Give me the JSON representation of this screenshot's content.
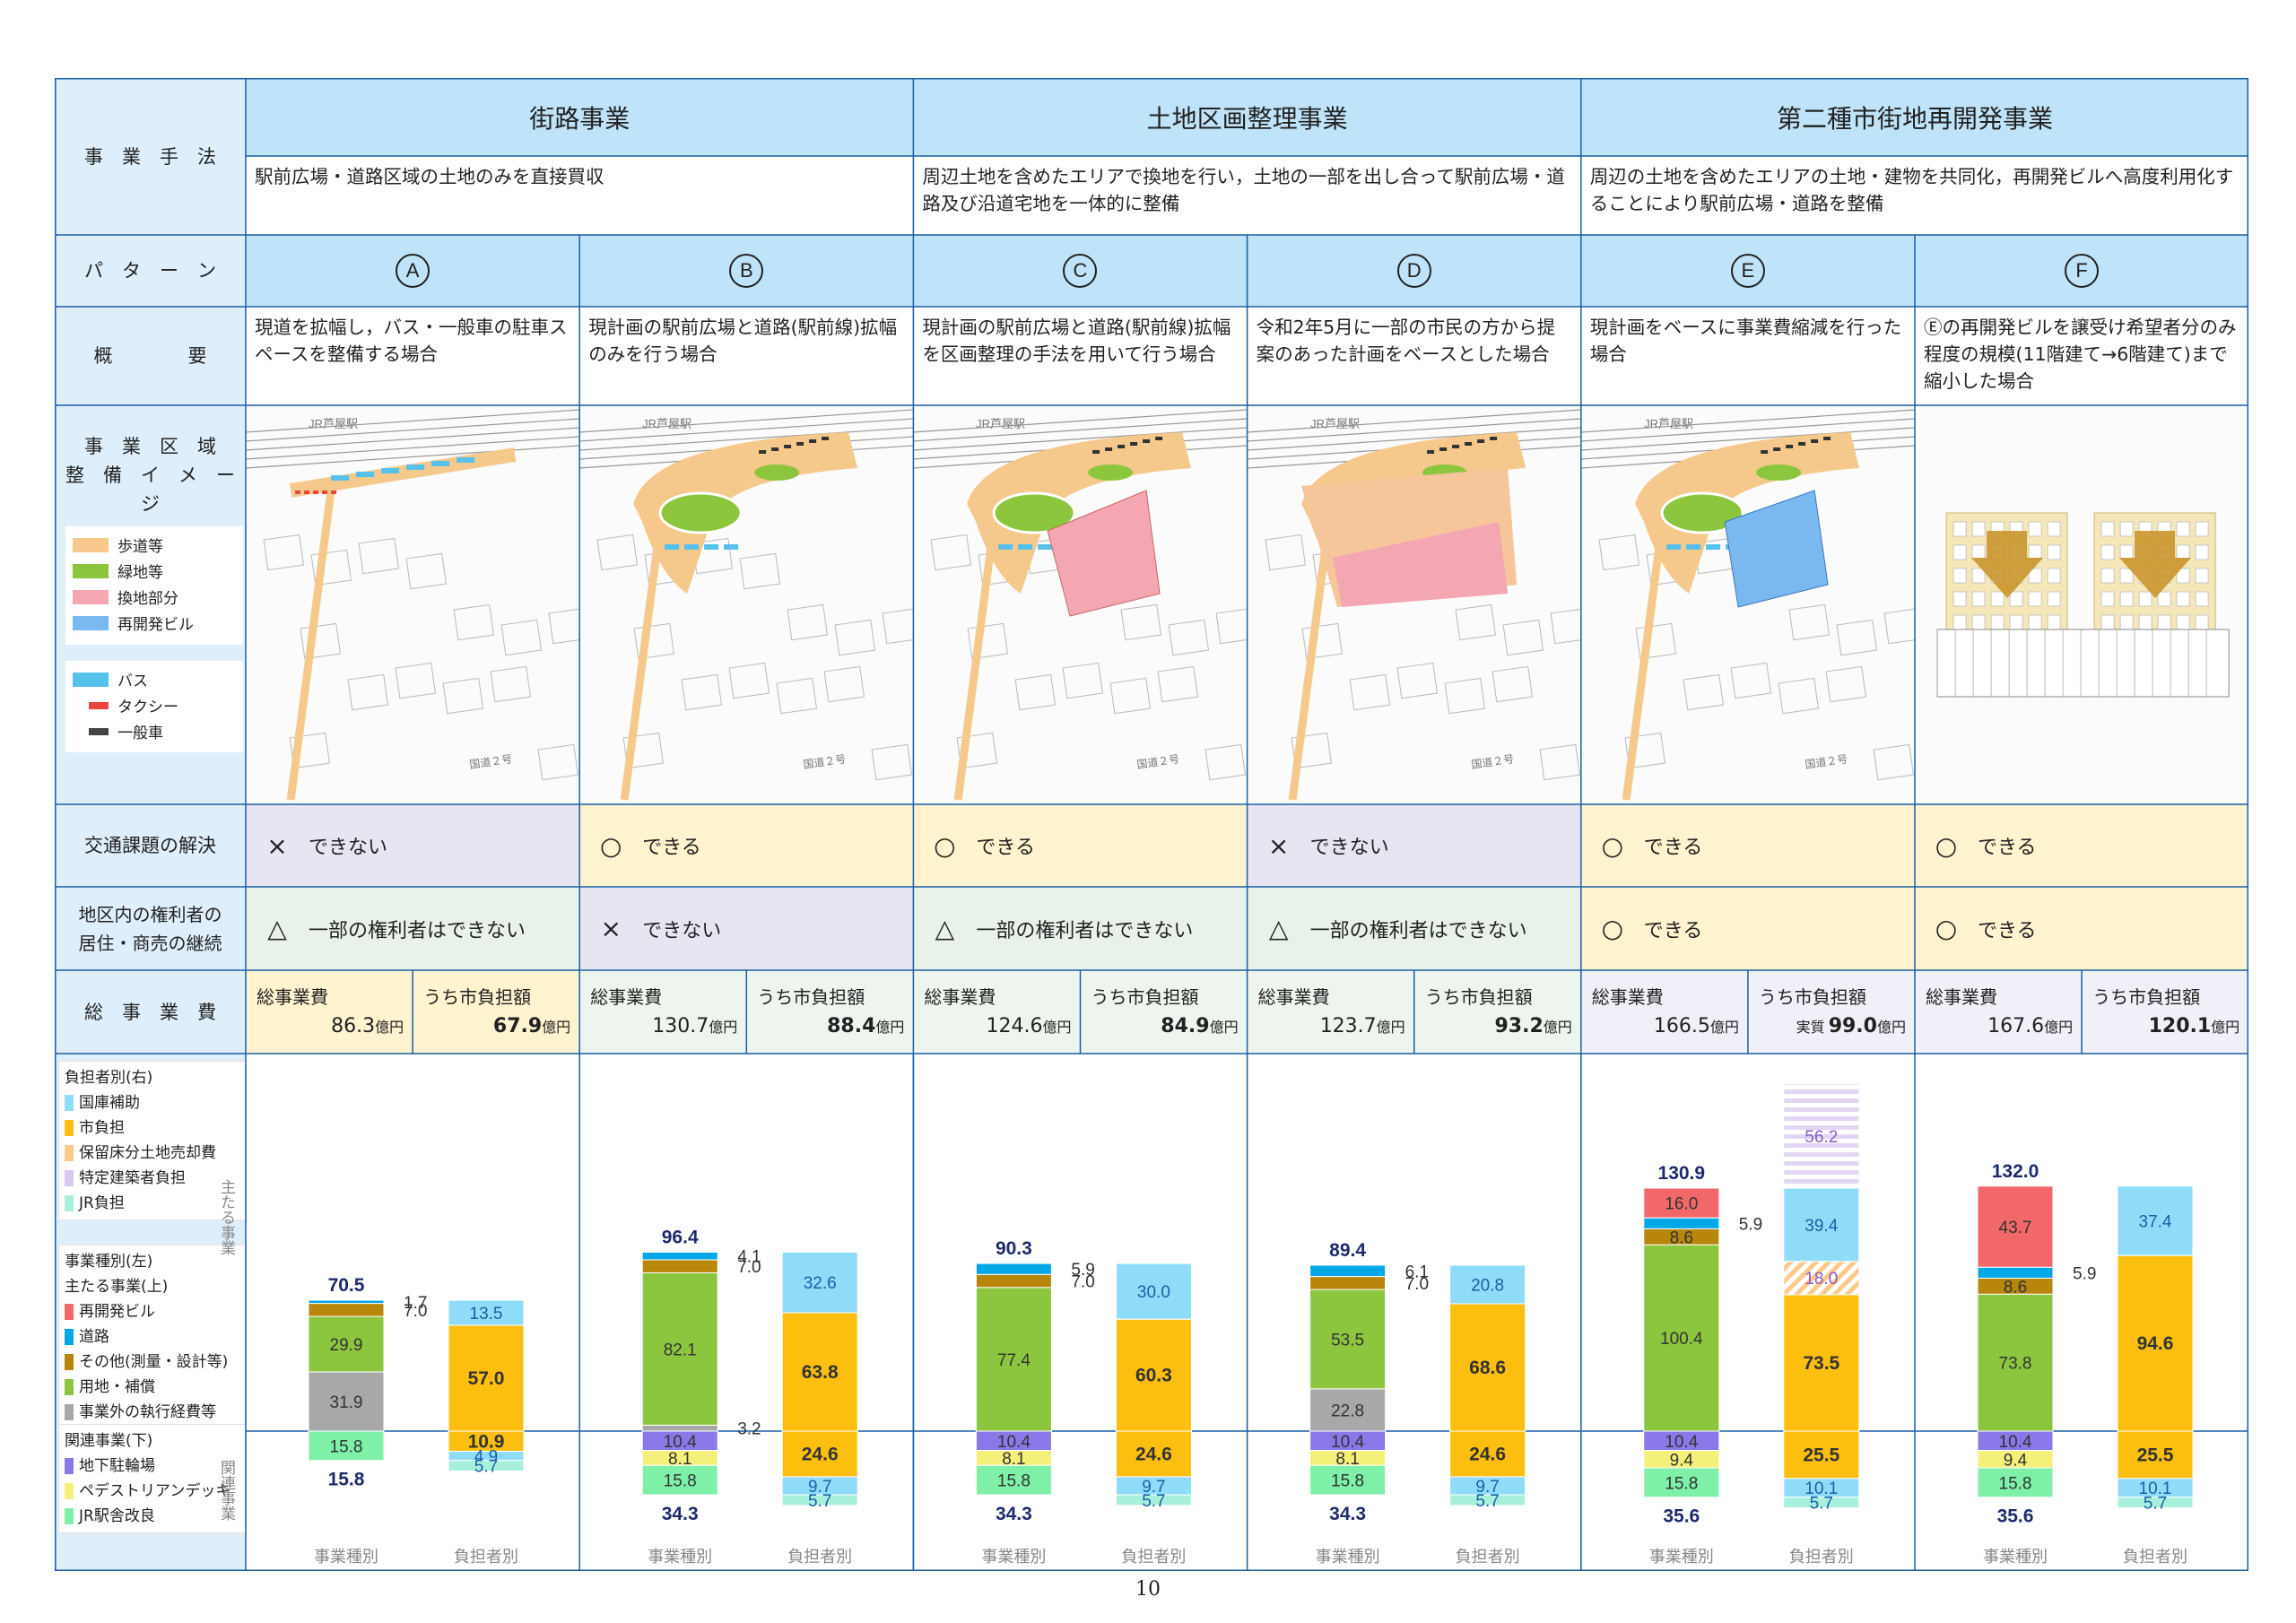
{
  "row_labels": {
    "method": "事　業　手　法",
    "pattern": "パ　タ　ー　ン",
    "overview": "概　　　　要",
    "area": "事　業　区　域\n整　備　イ　メ　ー　ジ",
    "traffic": "交通課題の解決",
    "rights": "地区内の権利者の\n居住・商売の継続",
    "cost": "総　事　業　費"
  },
  "methods": [
    {
      "title": "街路事業",
      "desc": "駅前広場・道路区域の土地のみを直接買収"
    },
    {
      "title": "土地区画整理事業",
      "desc": "周辺土地を含めたエリアで換地を行い，土地の一部を出し合って駅前広場・道路及び沿道宅地を一体的に整備"
    },
    {
      "title": "第二種市街地再開発事業",
      "desc": "周辺の土地を含めたエリアの土地・建物を共同化，再開発ビルへ高度利用化することにより駅前広場・道路を整備"
    }
  ],
  "patterns": [
    {
      "letter": "A",
      "overview": "現道を拡幅し，バス・一般車の駐車スペースを整備する場合",
      "traffic": {
        "mark": "×",
        "text": "できない"
      },
      "rights": {
        "mark": "△",
        "text": "一部の権利者はできない"
      },
      "total_label": "総事業費",
      "total": "86.3",
      "city_label": "うち市負担額",
      "city": "67.9",
      "city_prefix": ""
    },
    {
      "letter": "B",
      "overview": "現計画の駅前広場と道路(駅前線)拡幅のみを行う場合",
      "traffic": {
        "mark": "○",
        "text": "できる"
      },
      "rights": {
        "mark": "×",
        "text": "できない"
      },
      "total_label": "総事業費",
      "total": "130.7",
      "city_label": "うち市負担額",
      "city": "88.4",
      "city_prefix": ""
    },
    {
      "letter": "C",
      "overview": "現計画の駅前広場と道路(駅前線)拡幅を区画整理の手法を用いて行う場合",
      "traffic": {
        "mark": "○",
        "text": "できる"
      },
      "rights": {
        "mark": "△",
        "text": "一部の権利者はできない"
      },
      "total_label": "総事業費",
      "total": "124.6",
      "city_label": "うち市負担額",
      "city": "84.9",
      "city_prefix": ""
    },
    {
      "letter": "D",
      "overview": "令和2年5月に一部の市民の方から提案のあった計画をベースとした場合",
      "traffic": {
        "mark": "×",
        "text": "できない"
      },
      "rights": {
        "mark": "△",
        "text": "一部の権利者はできない"
      },
      "total_label": "総事業費",
      "total": "123.7",
      "city_label": "うち市負担額",
      "city": "93.2",
      "city_prefix": ""
    },
    {
      "letter": "E",
      "overview": "現計画をベースに事業費縮減を行った場合",
      "traffic": {
        "mark": "○",
        "text": "できる"
      },
      "rights": {
        "mark": "○",
        "text": "できる"
      },
      "total_label": "総事業費",
      "total": "166.5",
      "city_label": "うち市負担額",
      "city": "99.0",
      "city_prefix": "実質"
    },
    {
      "letter": "F",
      "overview": "Ⓔの再開発ビルを譲受け希望者分のみ程度の規模(11階建て→6階建て)まで縮小した場合",
      "traffic": {
        "mark": "○",
        "text": "できる"
      },
      "rights": {
        "mark": "○",
        "text": "できる"
      },
      "total_label": "総事業費",
      "total": "167.6",
      "city_label": "うち市負担額",
      "city": "120.1",
      "city_prefix": ""
    }
  ],
  "unit": "億円",
  "map_legend": {
    "area": [
      {
        "label": "歩道等",
        "color": "#f8c78e"
      },
      {
        "label": "緑地等",
        "color": "#8cc63f"
      },
      {
        "label": "換地部分",
        "color": "#f4a7b2"
      },
      {
        "label": "再開発ビル",
        "color": "#7ab8f0"
      }
    ],
    "vehicles": [
      {
        "label": "バス",
        "color": "#56c1ea"
      },
      {
        "label": "タクシー",
        "color": "#e8453c"
      },
      {
        "label": "一般車",
        "color": "#444444"
      }
    ]
  },
  "map_text": {
    "station": "JR芦屋駅",
    "road": "国道２号"
  },
  "chart_legend": {
    "burden_title": "負担者別(右)",
    "burden": [
      {
        "label": "国庫補助",
        "color": "#8fdcf8"
      },
      {
        "label": "市負担",
        "color": "#fdbf0f"
      },
      {
        "label": "保留床分土地売却費",
        "color": "#fbc98a"
      },
      {
        "label": "特定建築者負担",
        "color": "#d9c8f0"
      },
      {
        "label": "JR負担",
        "color": "#a8f0dc"
      }
    ],
    "type_title": "事業種別(左)",
    "main_title": "主たる事業(上)",
    "main": [
      {
        "label": "再開発ビル",
        "color": "#f26868"
      },
      {
        "label": "道路",
        "color": "#00a8e8"
      },
      {
        "label": "その他(測量・設計等)",
        "color": "#b8860b"
      },
      {
        "label": "用地・補償",
        "color": "#8cc63f"
      },
      {
        "label": "事業外の執行経費等",
        "color": "#a8a8a8"
      }
    ],
    "related_title": "関連事業(下)",
    "related": [
      {
        "label": "地下駐輪場",
        "color": "#8878e8"
      },
      {
        "label": "ペデストリアンデッキ",
        "color": "#f5f07a"
      },
      {
        "label": "JR駅舎改良",
        "color": "#7ef0a8"
      }
    ]
  },
  "axis_side_labels": {
    "main": "主たる事業",
    "related": "関連事業"
  },
  "chart_data": {
    "type": "bar",
    "title": "",
    "unit": "億円",
    "colors": {
      "redevelop": "#f26868",
      "road": "#00a8e8",
      "other": "#b8860b",
      "land": "#8cc63f",
      "outside": "#a8a8a8",
      "parking": "#8878e8",
      "deck": "#f5f07a",
      "station": "#7ef0a8",
      "subsidy": "#8fdcf8",
      "city": "#fdbf0f",
      "floor": "#fbc98a",
      "specific": "#d9c8f0",
      "jr": "#a8f0dc"
    },
    "x_labels": [
      "事業種別",
      "負担者別"
    ],
    "patterns": [
      {
        "name": "A",
        "type_main": {
          "total": "70.5",
          "segments": [
            {
              "key": "outside",
              "value": 31.9
            },
            {
              "key": "land",
              "value": 29.9
            },
            {
              "key": "other",
              "value": 7.0
            },
            {
              "key": "road",
              "value": 1.7
            }
          ]
        },
        "type_related": {
          "total": "15.8",
          "segments": [
            {
              "key": "station",
              "value": 15.8
            }
          ]
        },
        "burden_main": {
          "segments": [
            {
              "key": "city",
              "value": 57.0
            },
            {
              "key": "subsidy",
              "value": 13.5
            }
          ]
        },
        "burden_related": {
          "segments": [
            {
              "key": "city",
              "value": 10.9
            },
            {
              "key": "subsidy",
              "value": 4.9
            },
            {
              "key": "jr",
              "value": 5.7
            }
          ]
        }
      },
      {
        "name": "B",
        "type_main": {
          "total": "96.4",
          "segments": [
            {
              "key": "outside",
              "value": 3.2
            },
            {
              "key": "land",
              "value": 82.1
            },
            {
              "key": "other",
              "value": 7.0
            },
            {
              "key": "road",
              "value": 4.1
            }
          ]
        },
        "type_related": {
          "total": "34.3",
          "segments": [
            {
              "key": "parking",
              "value": 10.4
            },
            {
              "key": "deck",
              "value": 8.1
            },
            {
              "key": "station",
              "value": 15.8
            }
          ]
        },
        "burden_main": {
          "segments": [
            {
              "key": "city",
              "value": 63.8
            },
            {
              "key": "subsidy",
              "value": 32.6
            }
          ]
        },
        "burden_related": {
          "segments": [
            {
              "key": "city",
              "value": 24.6
            },
            {
              "key": "subsidy",
              "value": 9.7
            },
            {
              "key": "jr",
              "value": 5.7
            }
          ]
        }
      },
      {
        "name": "C",
        "type_main": {
          "total": "90.3",
          "segments": [
            {
              "key": "land",
              "value": 77.4
            },
            {
              "key": "other",
              "value": 7.0
            },
            {
              "key": "road",
              "value": 5.9
            }
          ]
        },
        "type_related": {
          "total": "34.3",
          "segments": [
            {
              "key": "parking",
              "value": 10.4
            },
            {
              "key": "deck",
              "value": 8.1
            },
            {
              "key": "station",
              "value": 15.8
            }
          ]
        },
        "burden_main": {
          "segments": [
            {
              "key": "city",
              "value": 60.3
            },
            {
              "key": "subsidy",
              "value": 30.0
            }
          ]
        },
        "burden_related": {
          "segments": [
            {
              "key": "city",
              "value": 24.6
            },
            {
              "key": "subsidy",
              "value": 9.7
            },
            {
              "key": "jr",
              "value": 5.7
            }
          ]
        }
      },
      {
        "name": "D",
        "type_main": {
          "total": "89.4",
          "segments": [
            {
              "key": "outside",
              "value": 22.8
            },
            {
              "key": "land",
              "value": 53.5
            },
            {
              "key": "other",
              "value": 7.0
            },
            {
              "key": "road",
              "value": 6.1
            }
          ]
        },
        "type_related": {
          "total": "34.3",
          "segments": [
            {
              "key": "parking",
              "value": 10.4
            },
            {
              "key": "deck",
              "value": 8.1
            },
            {
              "key": "station",
              "value": 15.8
            }
          ]
        },
        "burden_main": {
          "segments": [
            {
              "key": "city",
              "value": 68.6
            },
            {
              "key": "subsidy",
              "value": 20.8
            }
          ]
        },
        "burden_related": {
          "segments": [
            {
              "key": "city",
              "value": 24.6
            },
            {
              "key": "subsidy",
              "value": 9.7
            },
            {
              "key": "jr",
              "value": 5.7
            }
          ]
        }
      },
      {
        "name": "E",
        "type_main": {
          "total": "130.9",
          "segments": [
            {
              "key": "land",
              "value": 100.4
            },
            {
              "key": "other",
              "value": 8.6
            },
            {
              "key": "road",
              "value": 5.9
            },
            {
              "key": "redevelop",
              "value": 16.0
            }
          ]
        },
        "type_related": {
          "total": "35.6",
          "segments": [
            {
              "key": "parking",
              "value": 10.4
            },
            {
              "key": "deck",
              "value": 9.4
            },
            {
              "key": "station",
              "value": 15.8
            }
          ]
        },
        "burden_main": {
          "segments": [
            {
              "key": "city",
              "value": 73.5
            },
            {
              "key": "floor",
              "value": 18.0
            },
            {
              "key": "subsidy",
              "value": 39.4
            },
            {
              "key": "specific",
              "value": 56.2
            }
          ]
        },
        "burden_related": {
          "segments": [
            {
              "key": "city",
              "value": 25.5
            },
            {
              "key": "subsidy",
              "value": 10.1
            },
            {
              "key": "jr",
              "value": 5.7
            }
          ]
        }
      },
      {
        "name": "F",
        "type_main": {
          "total": "132.0",
          "segments": [
            {
              "key": "land",
              "value": 73.8
            },
            {
              "key": "other",
              "value": 8.6
            },
            {
              "key": "road",
              "value": 5.9
            },
            {
              "key": "redevelop",
              "value": 43.7
            }
          ]
        },
        "type_related": {
          "total": "35.6",
          "segments": [
            {
              "key": "parking",
              "value": 10.4
            },
            {
              "key": "deck",
              "value": 9.4
            },
            {
              "key": "station",
              "value": 15.8
            }
          ]
        },
        "burden_main": {
          "segments": [
            {
              "key": "city",
              "value": 94.6
            },
            {
              "key": "subsidy",
              "value": 37.4
            }
          ]
        },
        "burden_related": {
          "segments": [
            {
              "key": "city",
              "value": 25.5
            },
            {
              "key": "subsidy",
              "value": 10.1
            },
            {
              "key": "jr",
              "value": 5.7
            }
          ]
        }
      }
    ]
  },
  "page_number": "10"
}
